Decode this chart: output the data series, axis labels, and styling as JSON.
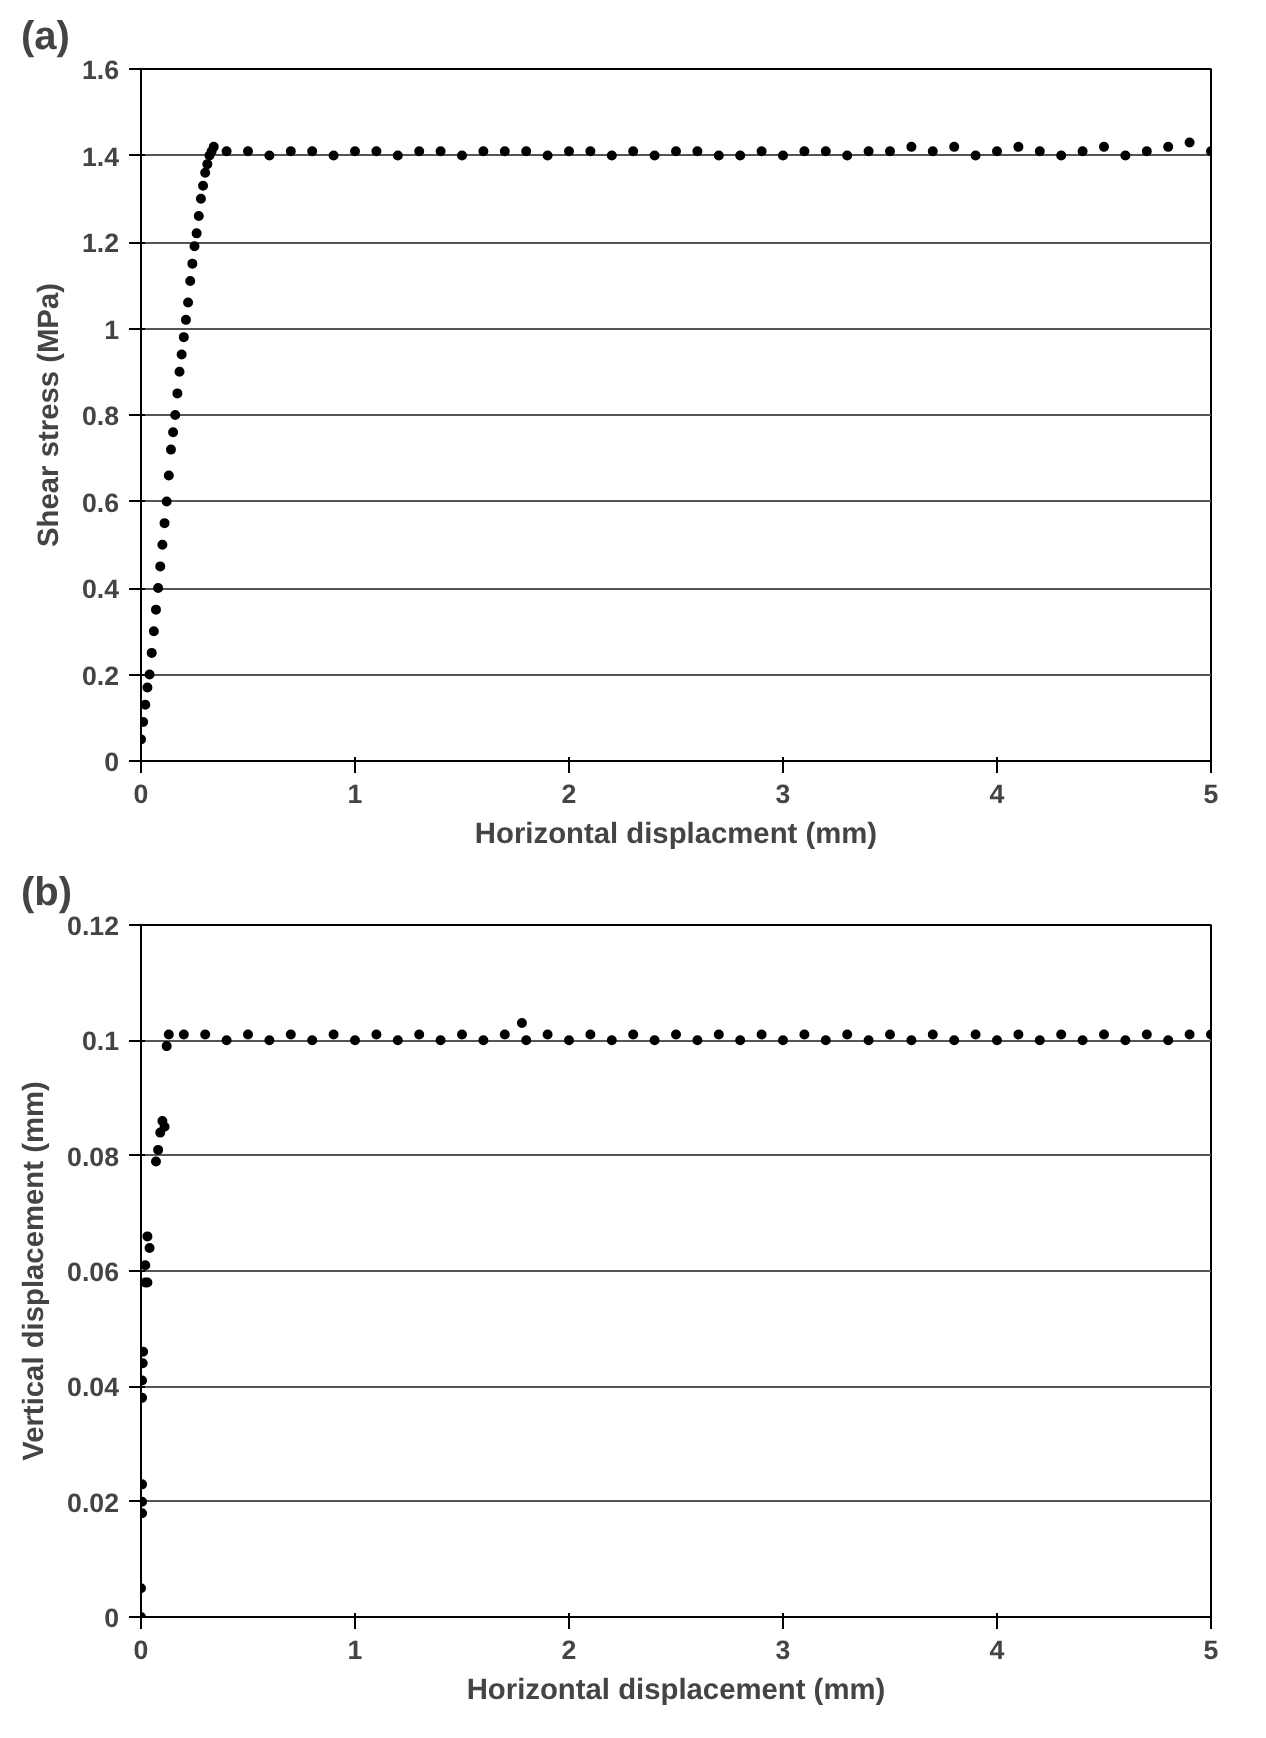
{
  "chart_data": [
    {
      "type": "scatter",
      "title": "(a)",
      "xlabel": "Horizontal displacment (mm)",
      "ylabel": "Shear stress (MPa)",
      "xlim": [
        0,
        5
      ],
      "ylim": [
        0,
        1.6
      ],
      "xticks": [
        0,
        1,
        2,
        3,
        4,
        5
      ],
      "yticks": [
        0,
        0.2,
        0.4,
        0.6,
        0.8,
        1,
        1.2,
        1.4,
        1.6
      ],
      "grid": "y",
      "marker": "circle",
      "series": [
        {
          "color": "#000000",
          "x": [
            0,
            0.01,
            0.02,
            0.03,
            0.04,
            0.05,
            0.06,
            0.07,
            0.08,
            0.09,
            0.1,
            0.11,
            0.12,
            0.13,
            0.14,
            0.15,
            0.16,
            0.17,
            0.18,
            0.19,
            0.2,
            0.21,
            0.22,
            0.23,
            0.24,
            0.25,
            0.26,
            0.27,
            0.28,
            0.29,
            0.3,
            0.31,
            0.32,
            0.33,
            0.34,
            0.4,
            0.5,
            0.6,
            0.7,
            0.8,
            0.9,
            1,
            1.1,
            1.2,
            1.3,
            1.4,
            1.5,
            1.6,
            1.7,
            1.8,
            1.9,
            2,
            2.1,
            2.2,
            2.3,
            2.4,
            2.5,
            2.6,
            2.7,
            2.8,
            2.9,
            3,
            3.1,
            3.2,
            3.3,
            3.4,
            3.5,
            3.6,
            3.7,
            3.8,
            3.9,
            4,
            4.1,
            4.2,
            4.3,
            4.4,
            4.5,
            4.6,
            4.7,
            4.8,
            4.9,
            5
          ],
          "values": [
            0.05,
            0.09,
            0.13,
            0.17,
            0.2,
            0.25,
            0.3,
            0.35,
            0.4,
            0.45,
            0.5,
            0.55,
            0.6,
            0.66,
            0.72,
            0.76,
            0.8,
            0.85,
            0.9,
            0.94,
            0.98,
            1.02,
            1.06,
            1.11,
            1.15,
            1.19,
            1.22,
            1.26,
            1.3,
            1.33,
            1.36,
            1.38,
            1.4,
            1.41,
            1.42,
            1.41,
            1.41,
            1.4,
            1.41,
            1.41,
            1.4,
            1.41,
            1.41,
            1.4,
            1.41,
            1.41,
            1.4,
            1.41,
            1.41,
            1.41,
            1.4,
            1.41,
            1.41,
            1.4,
            1.41,
            1.4,
            1.41,
            1.41,
            1.4,
            1.4,
            1.41,
            1.4,
            1.41,
            1.41,
            1.4,
            1.41,
            1.41,
            1.42,
            1.41,
            1.42,
            1.4,
            1.41,
            1.42,
            1.41,
            1.4,
            1.41,
            1.42,
            1.4,
            1.41,
            1.42,
            1.43,
            1.41
          ]
        }
      ]
    },
    {
      "type": "scatter",
      "title": "(b)",
      "xlabel": "Horizontal displacement (mm)",
      "ylabel": "Vertical displacement (mm)",
      "xlim": [
        0,
        5
      ],
      "ylim": [
        0,
        0.12
      ],
      "xticks": [
        0,
        1,
        2,
        3,
        4,
        5
      ],
      "yticks": [
        0,
        0.02,
        0.04,
        0.06,
        0.08,
        0.1,
        0.12
      ],
      "grid": "y",
      "marker": "circle",
      "series": [
        {
          "color": "#000000",
          "x": [
            0,
            0,
            0.005,
            0.005,
            0.005,
            0.005,
            0.005,
            0.008,
            0.01,
            0.02,
            0.03,
            0.02,
            0.04,
            0.03,
            0.07,
            0.08,
            0.09,
            0.1,
            0.11,
            0.12,
            0.13,
            0.2,
            0.3,
            0.4,
            0.5,
            0.6,
            0.7,
            0.8,
            0.9,
            1,
            1.1,
            1.2,
            1.3,
            1.4,
            1.5,
            1.6,
            1.7,
            1.78,
            1.8,
            1.9,
            2,
            2.1,
            2.2,
            2.3,
            2.4,
            2.5,
            2.6,
            2.7,
            2.8,
            2.9,
            3,
            3.1,
            3.2,
            3.3,
            3.4,
            3.5,
            3.6,
            3.7,
            3.8,
            3.9,
            4,
            4.1,
            4.2,
            4.3,
            4.4,
            4.5,
            4.6,
            4.7,
            4.8,
            4.9,
            5
          ],
          "values": [
            0,
            0.005,
            0.018,
            0.02,
            0.023,
            0.038,
            0.041,
            0.044,
            0.046,
            0.058,
            0.058,
            0.061,
            0.064,
            0.066,
            0.079,
            0.081,
            0.084,
            0.086,
            0.085,
            0.099,
            0.101,
            0.101,
            0.101,
            0.1,
            0.101,
            0.1,
            0.101,
            0.1,
            0.101,
            0.1,
            0.101,
            0.1,
            0.101,
            0.1,
            0.101,
            0.1,
            0.101,
            0.103,
            0.1,
            0.101,
            0.1,
            0.101,
            0.1,
            0.101,
            0.1,
            0.101,
            0.1,
            0.101,
            0.1,
            0.101,
            0.1,
            0.101,
            0.1,
            0.101,
            0.1,
            0.101,
            0.1,
            0.101,
            0.1,
            0.101,
            0.1,
            0.101,
            0.1,
            0.101,
            0.1,
            0.101,
            0.1,
            0.101,
            0.1,
            0.101,
            0.101
          ]
        }
      ]
    }
  ]
}
